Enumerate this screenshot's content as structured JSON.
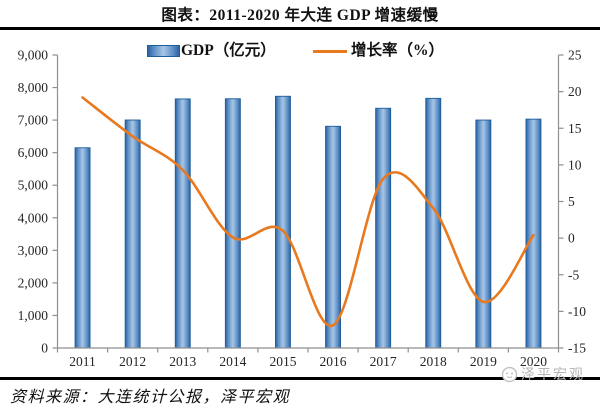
{
  "title": "图表：2011-2020 年大连 GDP 增速缓慢",
  "legend": {
    "bar_label": "GDP（亿元）",
    "line_label": "增长率（%）"
  },
  "source": "资料来源：大连统计公报，泽平宏观",
  "watermark": "泽平宏观",
  "colors": {
    "bar_edge": "#2b62a3",
    "bar_mid": "#a8c6e6",
    "bar_border": "#1e5c9a",
    "line": "#e8791f",
    "axis": "#8f8f8f",
    "label_text": "#262626",
    "watermark_gray": "#b5b5b5"
  },
  "chart_data": {
    "type": "bar",
    "subtype": "combo-bar-line-dual-axis",
    "title": "图表：2011-2020 年大连 GDP 增速缓慢",
    "categories": [
      "2011",
      "2012",
      "2013",
      "2014",
      "2015",
      "2016",
      "2017",
      "2018",
      "2019",
      "2020"
    ],
    "series": [
      {
        "name": "GDP（亿元）",
        "type": "bar",
        "axis": "left",
        "values": [
          6150,
          7003,
          7651,
          7656,
          7732,
          6810,
          7364,
          7669,
          7002,
          7030
        ]
      },
      {
        "name": "增长率（%）",
        "type": "line",
        "axis": "right",
        "smooth": true,
        "values": [
          19.2,
          13.9,
          9.3,
          0.1,
          1.0,
          -11.9,
          8.1,
          4.1,
          -8.7,
          0.4
        ]
      }
    ],
    "left_axis": {
      "min": 0,
      "max": 9000,
      "step": 1000,
      "tick_labels": [
        "0",
        "1,000",
        "2,000",
        "3,000",
        "4,000",
        "5,000",
        "6,000",
        "7,000",
        "8,000",
        "9,000"
      ]
    },
    "right_axis": {
      "min": -15,
      "max": 25,
      "step": 5,
      "tick_labels": [
        "-15",
        "-10",
        "-5",
        "0",
        "5",
        "10",
        "15",
        "20",
        "25"
      ]
    },
    "grid": false,
    "legend_position": "top"
  }
}
